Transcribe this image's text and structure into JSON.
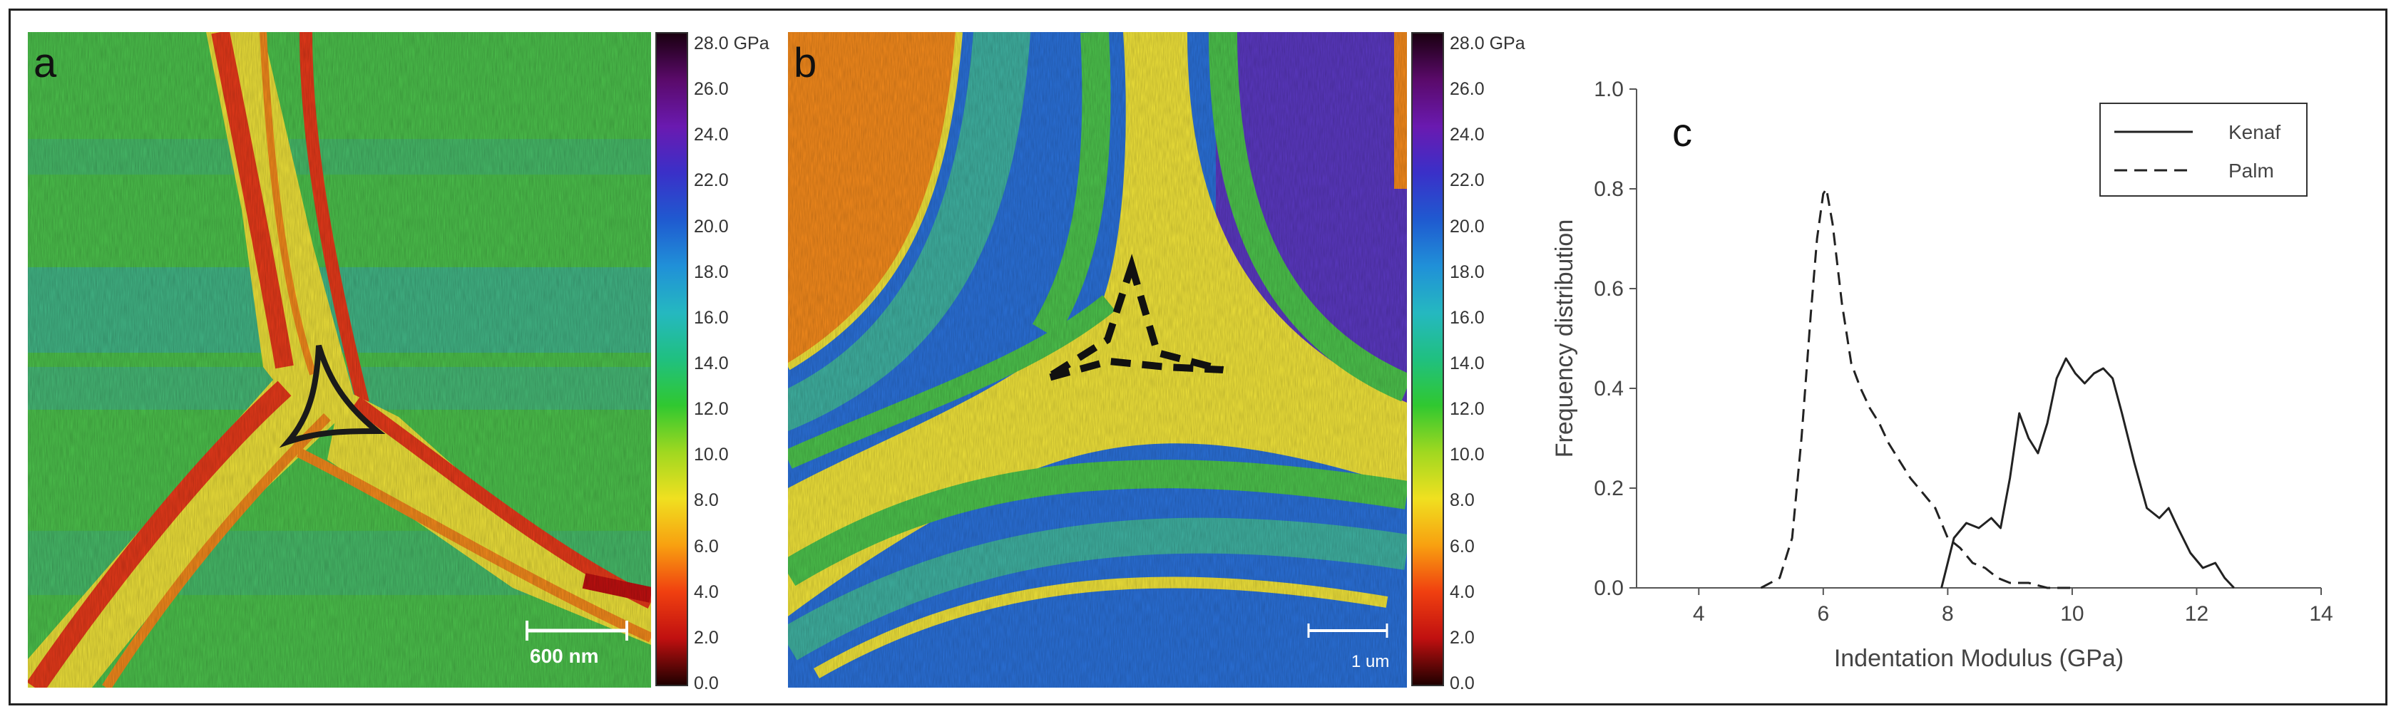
{
  "panels": {
    "a": {
      "label": "a",
      "scale_bar": "600 nm"
    },
    "b": {
      "label": "b",
      "scale_bar": "1 um"
    },
    "c": {
      "label": "c"
    }
  },
  "colorbar": {
    "ticks": [
      "28.0 GPa",
      "26.0",
      "24.0",
      "22.0",
      "20.0",
      "18.0",
      "16.0",
      "14.0",
      "12.0",
      "10.0",
      "8.0",
      "6.0",
      "4.0",
      "2.0",
      "0.0"
    ],
    "colors": [
      "#1a0010",
      "#5a0a6a",
      "#6a1ab0",
      "#3a30c8",
      "#1f5ad0",
      "#2090d8",
      "#25b8c0",
      "#20c080",
      "#30c830",
      "#a0d820",
      "#f0e020",
      "#f8a010",
      "#f04010",
      "#c01010",
      "#200000"
    ]
  },
  "map_colors": {
    "green": "#4cc24c",
    "teal": "#3fb0a0",
    "yellow": "#f0e33a",
    "orange": "#f48a1c",
    "red": "#e83a1a",
    "blue": "#2a70d8",
    "purple": "#5a38c0"
  },
  "chart_data": {
    "type": "line",
    "xlabel": "Indentation Modulus (GPa)",
    "ylabel": "Frequency distribution",
    "xlim": [
      3,
      14
    ],
    "ylim": [
      0,
      1.0
    ],
    "xticks": [
      "4",
      "6",
      "8",
      "10",
      "12",
      "14"
    ],
    "yticks": [
      "0.0",
      "0.2",
      "0.4",
      "0.6",
      "0.8",
      "1.0"
    ],
    "legend_position": "top-right",
    "series": [
      {
        "name": "Kenaf",
        "style": "solid",
        "x": [
          7.9,
          8.1,
          8.3,
          8.5,
          8.7,
          8.85,
          9.0,
          9.15,
          9.3,
          9.45,
          9.6,
          9.75,
          9.9,
          10.05,
          10.2,
          10.35,
          10.5,
          10.65,
          10.8,
          11.0,
          11.2,
          11.4,
          11.55,
          11.7,
          11.9,
          12.1,
          12.3,
          12.45,
          12.6
        ],
        "y": [
          0.0,
          0.1,
          0.13,
          0.12,
          0.14,
          0.12,
          0.22,
          0.35,
          0.3,
          0.27,
          0.33,
          0.42,
          0.46,
          0.43,
          0.41,
          0.43,
          0.44,
          0.42,
          0.35,
          0.25,
          0.16,
          0.14,
          0.16,
          0.12,
          0.07,
          0.04,
          0.05,
          0.02,
          0.0
        ]
      },
      {
        "name": "Palm",
        "style": "dashed",
        "x": [
          5.0,
          5.3,
          5.5,
          5.65,
          5.8,
          5.9,
          6.0,
          6.05,
          6.15,
          6.3,
          6.45,
          6.6,
          6.75,
          6.9,
          7.05,
          7.2,
          7.4,
          7.6,
          7.8,
          8.0,
          8.2,
          8.4,
          8.6,
          8.8,
          9.0,
          9.3,
          9.6,
          10.0
        ],
        "y": [
          0.0,
          0.02,
          0.1,
          0.3,
          0.55,
          0.7,
          0.79,
          0.8,
          0.73,
          0.57,
          0.45,
          0.4,
          0.36,
          0.33,
          0.29,
          0.26,
          0.22,
          0.19,
          0.16,
          0.1,
          0.08,
          0.05,
          0.04,
          0.02,
          0.01,
          0.01,
          0.0,
          0.0
        ]
      }
    ]
  }
}
